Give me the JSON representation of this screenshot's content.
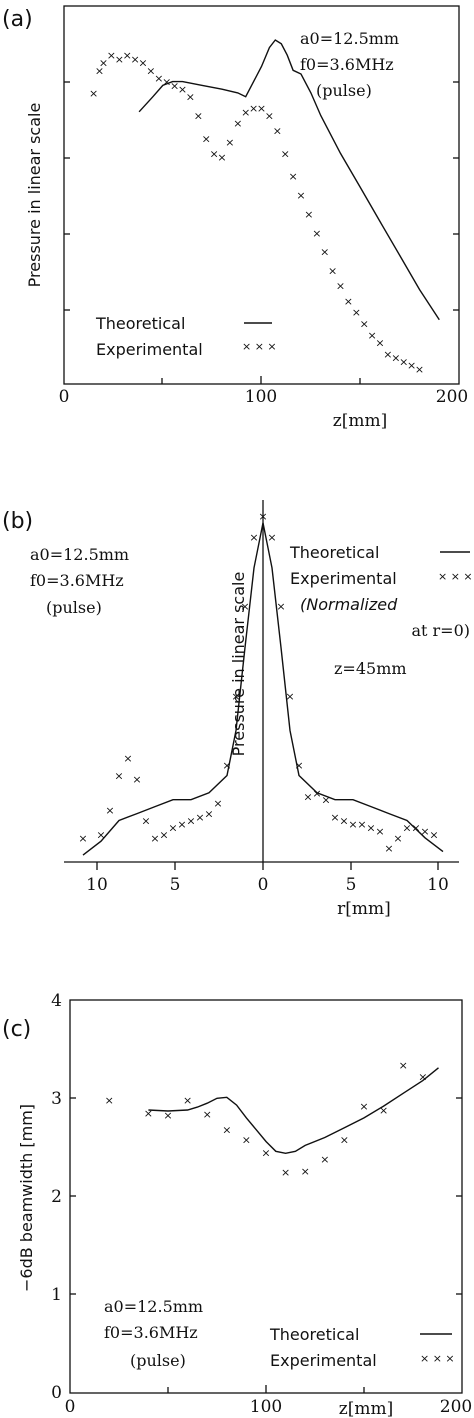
{
  "panels": {
    "a": {
      "label": "(a)",
      "ylabel": "Pressure in linear scale",
      "xlabel": "z[mm]",
      "params": [
        "a0=12.5mm",
        "f0=3.6MHz",
        "(pulse)"
      ],
      "legend": {
        "theoretical": "Theoretical",
        "experimental": "Experimental"
      },
      "xticks": [
        "0",
        "100",
        "200"
      ]
    },
    "b": {
      "label": "(b)",
      "ylabel": "Pressure in linear scale",
      "xlabel": "r[mm]",
      "params": [
        "a0=12.5mm",
        "f0=3.6MHz",
        "(pulse)"
      ],
      "legend": {
        "theoretical": "Theoretical",
        "experimental": "Experimental",
        "note1": "(Normalized",
        "note2": "at r=0)"
      },
      "annotation": "z=45mm",
      "xticks": [
        "10",
        "5",
        "0",
        "5",
        "10"
      ]
    },
    "c": {
      "label": "(c)",
      "ylabel": "−6dB beamwidth [mm]",
      "xlabel": "z[mm]",
      "params": [
        "a0=12.5mm",
        "f0=3.6MHz",
        "(pulse)"
      ],
      "legend": {
        "theoretical": "Theoretical",
        "experimental": "Experimental"
      },
      "xticks": [
        "0",
        "100",
        "200"
      ],
      "yticks": [
        "0",
        "1",
        "2",
        "3",
        "4"
      ]
    }
  },
  "chart_data": [
    {
      "type": "line",
      "xlabel": "z[mm]",
      "ylabel": "Pressure in linear scale",
      "xlim": [
        0,
        200
      ],
      "ylim": [
        0,
        1
      ],
      "series": [
        {
          "name": "Theoretical",
          "x": [
            38,
            45,
            50,
            55,
            60,
            70,
            80,
            88,
            92,
            96,
            100,
            104,
            107,
            110,
            113,
            116,
            120,
            125,
            130,
            140,
            150,
            160,
            170,
            180,
            190
          ],
          "y": [
            0.72,
            0.76,
            0.79,
            0.8,
            0.8,
            0.79,
            0.78,
            0.77,
            0.76,
            0.8,
            0.84,
            0.89,
            0.91,
            0.9,
            0.87,
            0.83,
            0.82,
            0.77,
            0.71,
            0.61,
            0.52,
            0.43,
            0.34,
            0.25,
            0.17
          ]
        },
        {
          "name": "Experimental",
          "x": [
            15,
            18,
            20,
            24,
            28,
            32,
            36,
            40,
            44,
            48,
            52,
            56,
            60,
            64,
            68,
            72,
            76,
            80,
            84,
            88,
            92,
            96,
            100,
            104,
            108,
            112,
            116,
            120,
            124,
            128,
            132,
            136,
            140,
            144,
            148,
            152,
            156,
            160,
            164,
            168,
            172,
            176,
            180
          ],
          "y": [
            0.77,
            0.83,
            0.85,
            0.87,
            0.86,
            0.87,
            0.86,
            0.85,
            0.83,
            0.81,
            0.8,
            0.79,
            0.78,
            0.76,
            0.71,
            0.65,
            0.61,
            0.6,
            0.64,
            0.69,
            0.72,
            0.73,
            0.73,
            0.71,
            0.67,
            0.61,
            0.55,
            0.5,
            0.45,
            0.4,
            0.35,
            0.3,
            0.26,
            0.22,
            0.19,
            0.16,
            0.13,
            0.11,
            0.08,
            0.07,
            0.06,
            0.05,
            0.04
          ]
        }
      ]
    },
    {
      "type": "line",
      "xlabel": "r[mm]",
      "ylabel": "Pressure in linear scale",
      "xlim": [
        -10,
        10
      ],
      "ylim": [
        0,
        1
      ],
      "annotation": "z=45mm",
      "series": [
        {
          "name": "Theoretical",
          "x": [
            -10,
            -9,
            -8,
            -7,
            -6,
            -5,
            -4,
            -3,
            -2,
            -1.5,
            -1,
            -0.5,
            0,
            0.5,
            1,
            1.5,
            2,
            3,
            4,
            5,
            6,
            7,
            8,
            9,
            10
          ],
          "y": [
            0.02,
            0.06,
            0.12,
            0.14,
            0.16,
            0.18,
            0.18,
            0.2,
            0.25,
            0.38,
            0.62,
            0.85,
            0.98,
            0.85,
            0.62,
            0.38,
            0.25,
            0.2,
            0.18,
            0.18,
            0.16,
            0.14,
            0.12,
            0.07,
            0.03
          ]
        },
        {
          "name": "Experimental",
          "x": [
            -10,
            -9,
            -8.5,
            -8,
            -7.5,
            -7,
            -6.5,
            -6,
            -5.5,
            -5,
            -4.5,
            -4,
            -3.5,
            -3,
            -2.5,
            -2,
            -1.5,
            -1,
            -0.5,
            0,
            0.5,
            1,
            1.5,
            2,
            2.5,
            3,
            3.5,
            4,
            4.5,
            5,
            5.5,
            6,
            6.5,
            7,
            7.5,
            8,
            8.5,
            9,
            9.5
          ],
          "y": [
            0.07,
            0.08,
            0.15,
            0.25,
            0.3,
            0.24,
            0.12,
            0.07,
            0.08,
            0.1,
            0.11,
            0.12,
            0.13,
            0.14,
            0.17,
            0.28,
            0.48,
            0.74,
            0.94,
            1.0,
            0.94,
            0.74,
            0.48,
            0.28,
            0.19,
            0.2,
            0.18,
            0.13,
            0.12,
            0.11,
            0.11,
            0.1,
            0.09,
            0.04,
            0.07,
            0.1,
            0.1,
            0.09,
            0.08
          ]
        }
      ]
    },
    {
      "type": "line",
      "xlabel": "z[mm]",
      "ylabel": "−6dB beamwidth [mm]",
      "xlim": [
        0,
        200
      ],
      "ylim": [
        0,
        4
      ],
      "series": [
        {
          "name": "Theoretical",
          "x": [
            40,
            50,
            60,
            65,
            70,
            75,
            80,
            85,
            90,
            95,
            100,
            105,
            110,
            115,
            120,
            130,
            140,
            150,
            160,
            170,
            180,
            188
          ],
          "y": [
            2.88,
            2.87,
            2.88,
            2.91,
            2.95,
            3.0,
            3.01,
            2.93,
            2.8,
            2.68,
            2.56,
            2.46,
            2.44,
            2.46,
            2.52,
            2.6,
            2.7,
            2.8,
            2.92,
            3.05,
            3.18,
            3.31
          ]
        },
        {
          "name": "Experimental",
          "x": [
            20,
            40,
            50,
            60,
            70,
            80,
            90,
            100,
            110,
            120,
            130,
            140,
            150,
            160,
            170,
            180
          ],
          "y": [
            2.98,
            2.85,
            2.83,
            2.98,
            2.84,
            2.68,
            2.58,
            2.45,
            2.25,
            2.26,
            2.38,
            2.58,
            2.92,
            2.88,
            3.34,
            3.22
          ]
        }
      ]
    }
  ]
}
